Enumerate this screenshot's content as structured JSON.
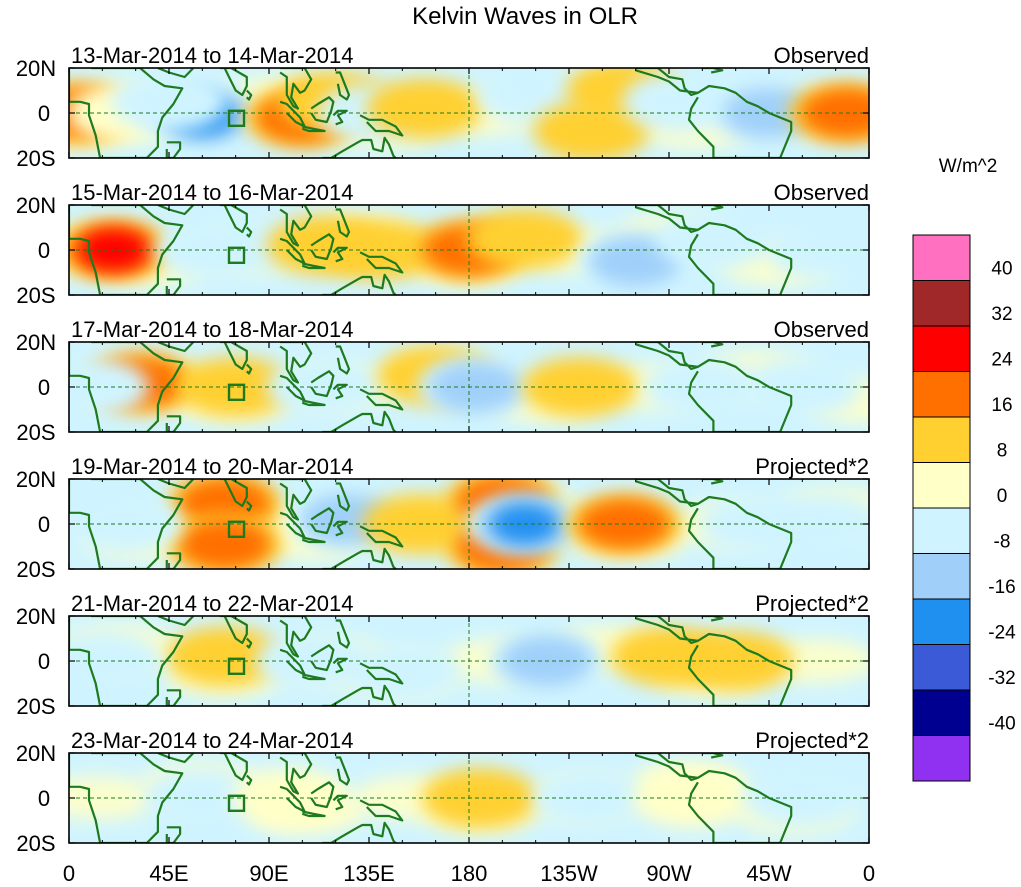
{
  "chart_data": {
    "type": "heatmap",
    "title": "Kelvin Waves in OLR",
    "units_label": "W/m^2",
    "x_ticks": [
      "0",
      "45E",
      "90E",
      "135E",
      "180",
      "135W",
      "90W",
      "45W",
      "0"
    ],
    "y_ticks": [
      "20N",
      "0",
      "20S"
    ],
    "colorbar": {
      "levels": [
        "40",
        "32",
        "24",
        "16",
        "8",
        "0",
        "-8",
        "-16",
        "-24",
        "-32",
        "-40"
      ],
      "colors": [
        "#ff70c0",
        "#a02828",
        "#ff0000",
        "#ff7000",
        "#ffd030",
        "#ffffc8",
        "#d0f4ff",
        "#a0d0fa",
        "#2090f0",
        "#3a5ad8",
        "#000090",
        "#9030f0"
      ]
    },
    "panels": [
      {
        "date_range": "13-Mar-2014 to 14-Mar-2014",
        "kind": "Observed",
        "anomalies": [
          {
            "lon": 5,
            "lat": 0,
            "value": 22
          },
          {
            "lon": 25,
            "lat": 0,
            "value": 6
          },
          {
            "lon": 60,
            "lat": -1,
            "value": -26
          },
          {
            "lon": 45,
            "lat": 5,
            "value": -12
          },
          {
            "lon": 105,
            "lat": -2,
            "value": 20
          },
          {
            "lon": 120,
            "lat": 5,
            "value": 12
          },
          {
            "lon": 138,
            "lat": 0,
            "value": -10
          },
          {
            "lon": 160,
            "lat": 2,
            "value": 8
          },
          {
            "lon": 210,
            "lat": 8,
            "value": -8
          },
          {
            "lon": 250,
            "lat": 10,
            "value": 12
          },
          {
            "lon": 235,
            "lat": -8,
            "value": 8
          },
          {
            "lon": 275,
            "lat": 5,
            "value": -14
          },
          {
            "lon": 315,
            "lat": 0,
            "value": -20
          },
          {
            "lon": 350,
            "lat": 0,
            "value": 18
          }
        ]
      },
      {
        "date_range": "15-Mar-2014 to 16-Mar-2014",
        "kind": "Observed",
        "anomalies": [
          {
            "lon": 20,
            "lat": 0,
            "value": 30
          },
          {
            "lon": 65,
            "lat": 0,
            "value": -14
          },
          {
            "lon": 95,
            "lat": 5,
            "value": -8
          },
          {
            "lon": 115,
            "lat": 2,
            "value": 14
          },
          {
            "lon": 140,
            "lat": 0,
            "value": 8
          },
          {
            "lon": 180,
            "lat": 0,
            "value": 16
          },
          {
            "lon": 205,
            "lat": 5,
            "value": 8
          },
          {
            "lon": 255,
            "lat": -5,
            "value": -18
          },
          {
            "lon": 290,
            "lat": 5,
            "value": -10
          },
          {
            "lon": 340,
            "lat": 0,
            "value": -10
          }
        ]
      },
      {
        "date_range": "17-Mar-2014 to 18-Mar-2014",
        "kind": "Observed",
        "anomalies": [
          {
            "lon": 32,
            "lat": 2,
            "value": 18
          },
          {
            "lon": 10,
            "lat": 0,
            "value": -8
          },
          {
            "lon": 75,
            "lat": 0,
            "value": 8
          },
          {
            "lon": 115,
            "lat": 0,
            "value": -14
          },
          {
            "lon": 165,
            "lat": 5,
            "value": 8
          },
          {
            "lon": 183,
            "lat": 0,
            "value": -18
          },
          {
            "lon": 230,
            "lat": 0,
            "value": 8
          },
          {
            "lon": 285,
            "lat": 0,
            "value": -10
          },
          {
            "lon": 330,
            "lat": 0,
            "value": -8
          }
        ]
      },
      {
        "date_range": "19-Mar-2014 to 20-Mar-2014",
        "kind": "Projected*2",
        "anomalies": [
          {
            "lon": 70,
            "lat": 9,
            "value": 20
          },
          {
            "lon": 70,
            "lat": -9,
            "value": 22
          },
          {
            "lon": 25,
            "lat": 0,
            "value": -8
          },
          {
            "lon": 125,
            "lat": 2,
            "value": -22
          },
          {
            "lon": 158,
            "lat": 0,
            "value": 14
          },
          {
            "lon": 195,
            "lat": 10,
            "value": 18
          },
          {
            "lon": 195,
            "lat": -10,
            "value": 16
          },
          {
            "lon": 205,
            "lat": 0,
            "value": -30
          },
          {
            "lon": 250,
            "lat": 0,
            "value": 20
          },
          {
            "lon": 310,
            "lat": 0,
            "value": -10
          },
          {
            "lon": 340,
            "lat": 0,
            "value": -14
          }
        ]
      },
      {
        "date_range": "21-Mar-2014 to 22-Mar-2014",
        "kind": "Projected*2",
        "anomalies": [
          {
            "lon": 70,
            "lat": 2,
            "value": 10
          },
          {
            "lon": 110,
            "lat": 0,
            "value": -8
          },
          {
            "lon": 150,
            "lat": -5,
            "value": -8
          },
          {
            "lon": 215,
            "lat": 0,
            "value": -20
          },
          {
            "lon": 270,
            "lat": 2,
            "value": 12
          },
          {
            "lon": 300,
            "lat": 0,
            "value": 8
          },
          {
            "lon": 15,
            "lat": 0,
            "value": -6
          }
        ]
      },
      {
        "date_range": "23-Mar-2014 to 24-Mar-2014",
        "kind": "Projected*2",
        "anomalies": [
          {
            "lon": 60,
            "lat": 0,
            "value": -8
          },
          {
            "lon": 100,
            "lat": 0,
            "value": 6
          },
          {
            "lon": 185,
            "lat": 0,
            "value": 8
          },
          {
            "lon": 235,
            "lat": 0,
            "value": -10
          },
          {
            "lon": 280,
            "lat": 0,
            "value": 6
          },
          {
            "lon": 330,
            "lat": 0,
            "value": -6
          }
        ]
      }
    ]
  }
}
